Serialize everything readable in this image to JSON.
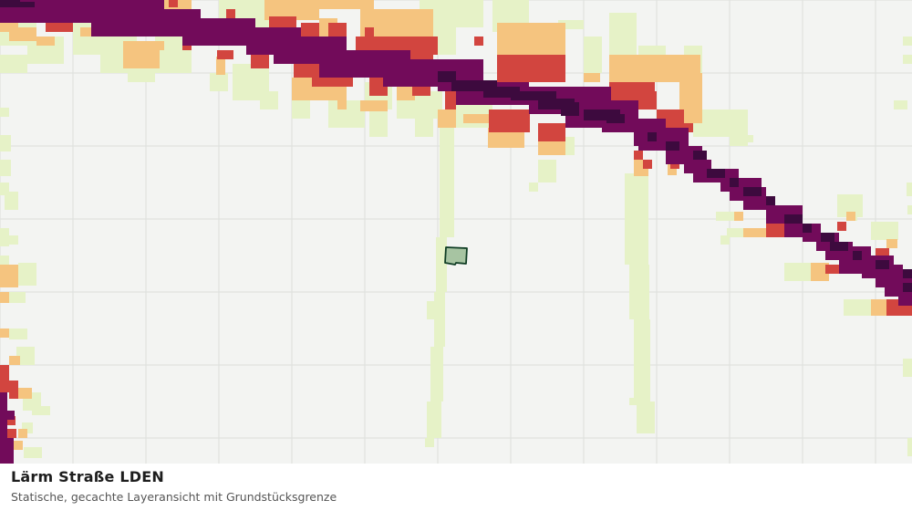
{
  "caption": {
    "title": "Lärm Straße LDEN",
    "subtitle": "Statische, gecachte Layeransicht mit Grundstücksgrenze"
  },
  "map": {
    "background_color": "#f3f4f2",
    "grid_color": "#dcdedb",
    "parcel": {
      "fill": "#a7c4a2",
      "stroke": "#0f3d24"
    },
    "noise_classes": [
      {
        "id": "c1",
        "color": "#e6f2c7"
      },
      {
        "id": "c2",
        "color": "#f5c47f"
      },
      {
        "id": "c3",
        "color": "#d2453f"
      },
      {
        "id": "c4",
        "color": "#720b5a"
      },
      {
        "id": "c5",
        "color": "#3d0a3e"
      }
    ]
  }
}
